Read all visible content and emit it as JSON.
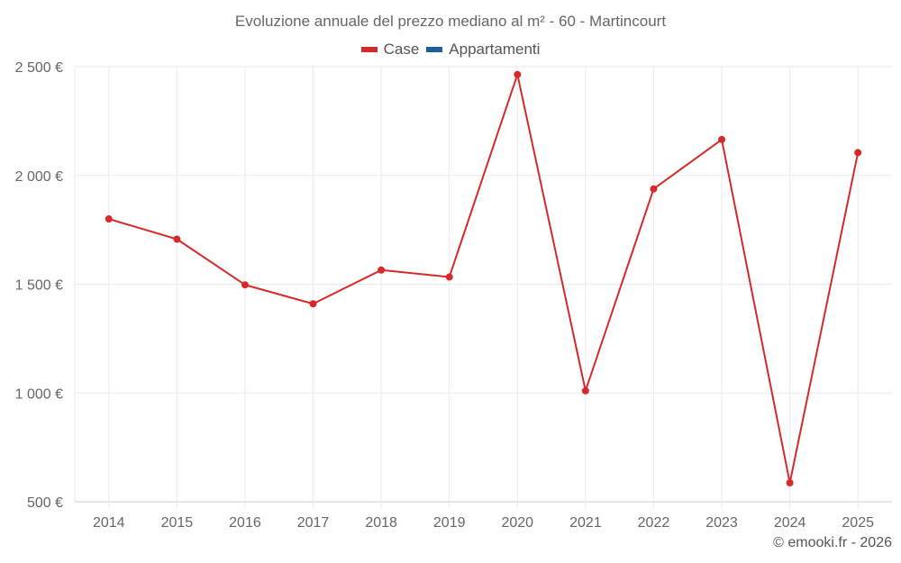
{
  "header": {
    "title": "Evoluzione annuale del prezzo mediano al m² - 60 - Martincourt"
  },
  "legend": [
    {
      "label": "Case",
      "color": "#d62a2a"
    },
    {
      "label": "Appartamenti",
      "color": "#1f5f99"
    }
  ],
  "footer": {
    "credit": "© emooki.fr - 2026"
  },
  "chart_data": {
    "type": "line",
    "title": "Evoluzione annuale del prezzo mediano al m² - 60 - Martincourt",
    "xlabel": "",
    "ylabel": "",
    "categories": [
      "2014",
      "2015",
      "2016",
      "2017",
      "2018",
      "2019",
      "2020",
      "2021",
      "2022",
      "2023",
      "2024",
      "2025"
    ],
    "series": [
      {
        "name": "Case",
        "color": "#d62a2a",
        "values": [
          1800,
          1707,
          1497,
          1410,
          1565,
          1533,
          2464,
          1010,
          1938,
          2165,
          587,
          2105
        ]
      },
      {
        "name": "Appartamenti",
        "color": "#1f5f99",
        "values": []
      }
    ],
    "ylim": [
      500,
      2500
    ],
    "yticks": [
      500,
      1000,
      1500,
      2000,
      2500
    ],
    "ytick_labels": [
      "500 €",
      "1 000 €",
      "1 500 €",
      "2 000 €",
      "2 500 €"
    ],
    "grid": true,
    "legend_position": "top"
  }
}
